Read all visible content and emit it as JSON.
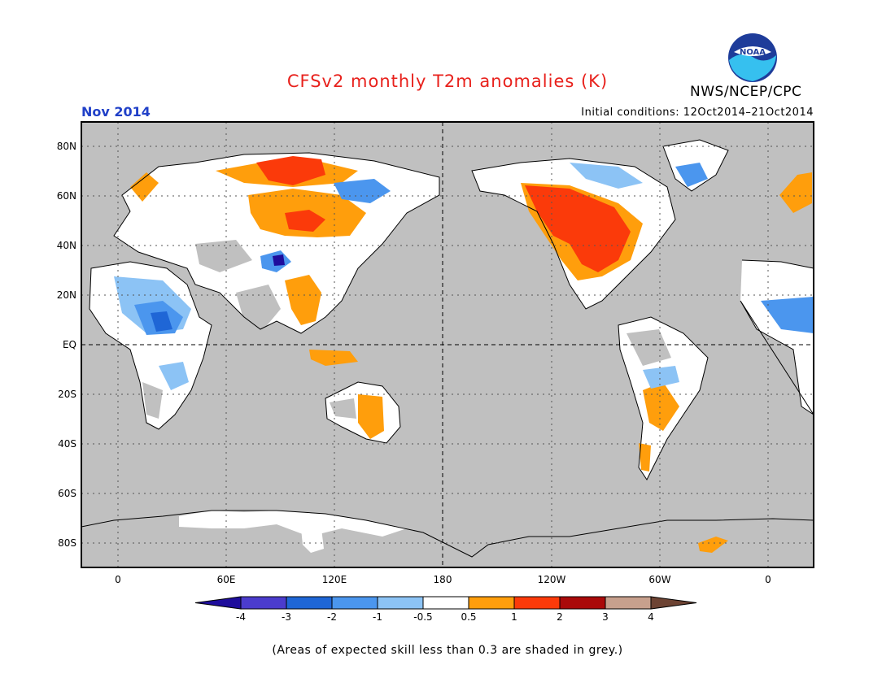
{
  "header": {
    "title": "CFSv2 monthly T2m anomalies (K)",
    "month": "Nov 2014",
    "initial_conditions": "Initial conditions: 12Oct2014–21Oct2014",
    "agency": "NWS/NCEP/CPC",
    "logo_text": "NOAA"
  },
  "map": {
    "lat_labels": [
      "80N",
      "60N",
      "40N",
      "20N",
      "EQ",
      "20S",
      "40S",
      "60S",
      "80S"
    ],
    "lon_labels": [
      "0",
      "60E",
      "120E",
      "180",
      "120W",
      "60W",
      "0"
    ],
    "colors": {
      "no_skill": "#c0c0c0",
      "ocean": "#c0c0c0",
      "neutral": "#ffffff"
    }
  },
  "legend": {
    "labels": [
      "-4",
      "-3",
      "-2",
      "-1",
      "-0.5",
      "0.5",
      "1",
      "2",
      "3",
      "4"
    ],
    "colors": [
      "#1e0d9c",
      "#4b3ccd",
      "#1f66d6",
      "#4b96ee",
      "#8cc3f5",
      "#ffffff",
      "#ff9e0c",
      "#fb3a0a",
      "#aa0a0a",
      "#c7a08d",
      "#6d4333"
    ]
  },
  "footnote": "(Areas of expected skill less than 0.3 are shaded in grey.)"
}
